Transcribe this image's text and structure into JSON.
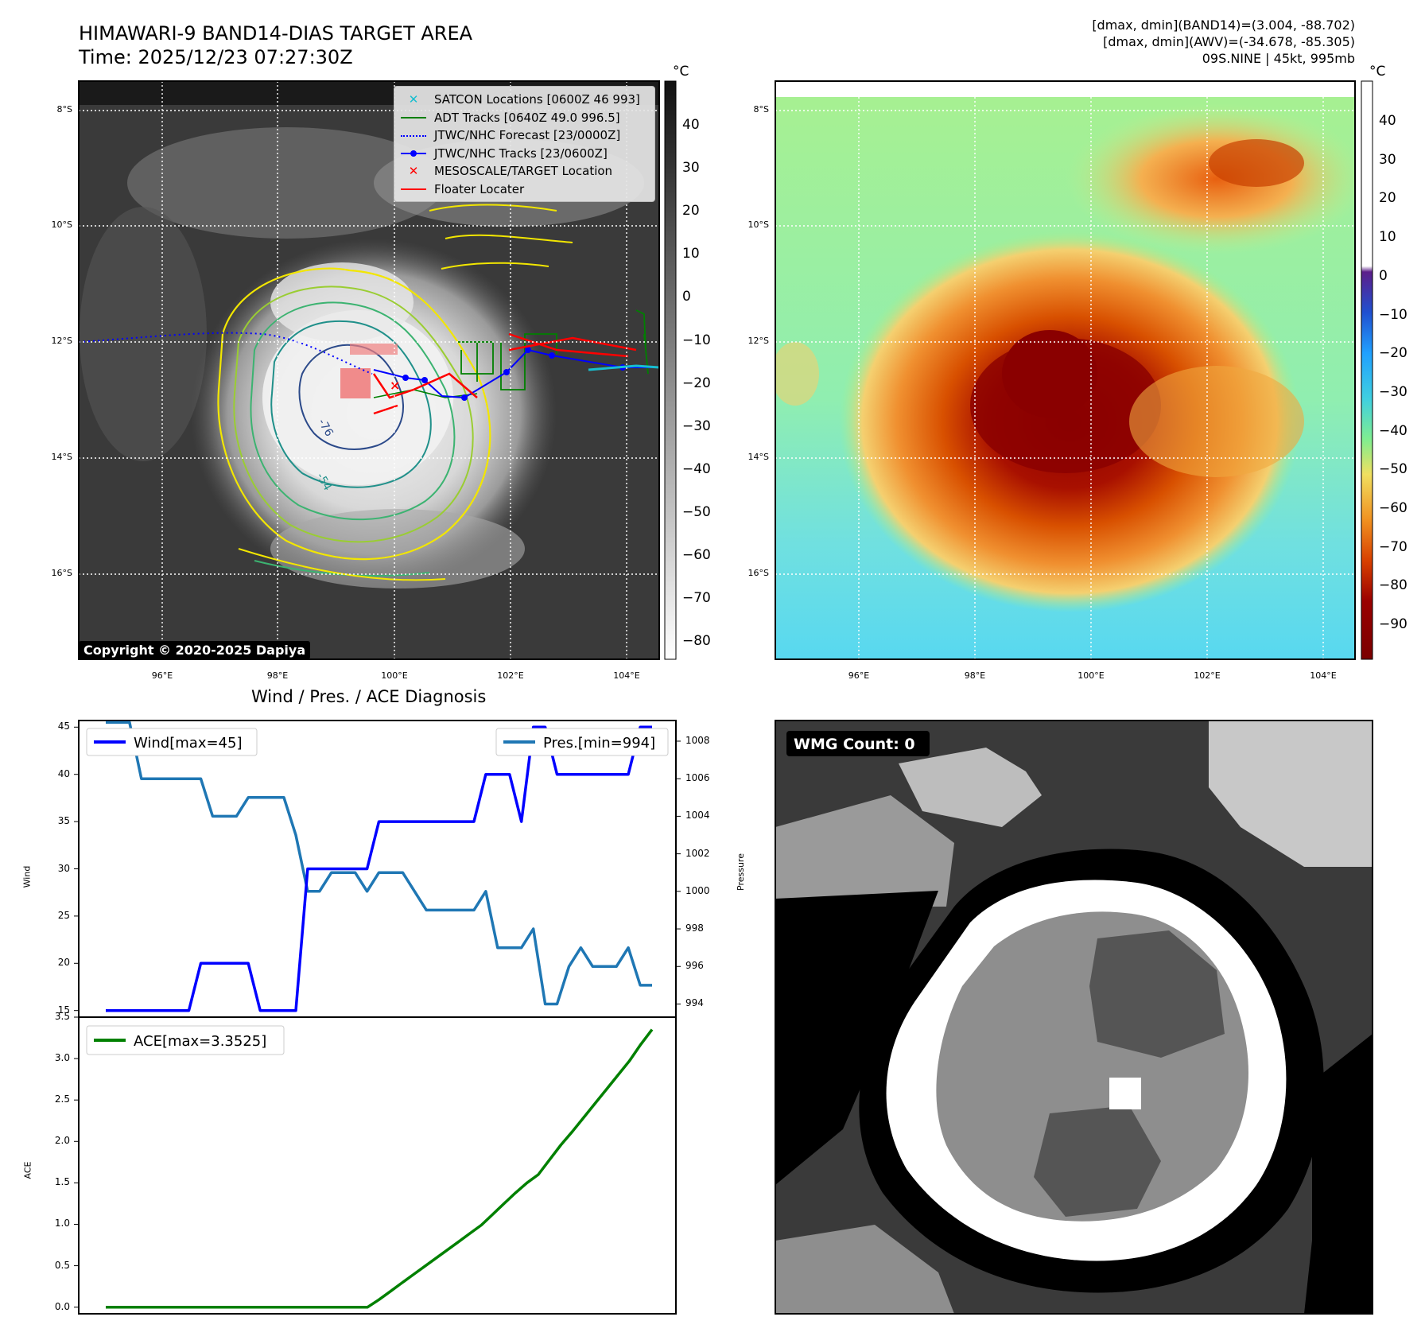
{
  "header": {
    "title_line1": "HIMAWARI-9 BAND14-DIAS TARGET AREA",
    "title_line2": "Time: 2025/12/23 07:27:30Z",
    "right_line1": "[dmax, dmin](BAND14)=(3.004, -88.702)",
    "right_line2": "[dmax, dmin](AWV)=(-34.678, -85.305)",
    "right_line3": "09S.NINE | 45kt, 995mb"
  },
  "map": {
    "lat_labels": [
      "8°S",
      "10°S",
      "12°S",
      "14°S",
      "16°S"
    ],
    "lon_labels": [
      "96°E",
      "98°E",
      "100°E",
      "102°E",
      "104°E"
    ],
    "copyright": "Copyright © 2020-2025 Dapiya",
    "contour_label_a": "-76",
    "contour_label_b": "-54",
    "legend": [
      {
        "label": "SATCON Locations [0600Z 46 993]",
        "color": "#17becf",
        "marker": "x"
      },
      {
        "label": "ADT Tracks [0640Z 49.0 996.5]",
        "color": "#008000",
        "marker": "line"
      },
      {
        "label": "JTWC/NHC Forecast [23/0000Z]",
        "color": "#0000ff",
        "marker": "dot"
      },
      {
        "label": "JTWC/NHC Tracks [23/0600Z]",
        "color": "#0000ff",
        "marker": "line-dot"
      },
      {
        "label": "MESOSCALE/TARGET Location",
        "color": "#ff0000",
        "marker": "x"
      },
      {
        "label": "Floater Locater",
        "color": "#ff0000",
        "marker": "line"
      }
    ]
  },
  "colorbar_gray": {
    "unit": "°C",
    "ticks": [
      "40",
      "30",
      "20",
      "10",
      "0",
      "−10",
      "−20",
      "−30",
      "−40",
      "−50",
      "−60",
      "−70",
      "−80"
    ]
  },
  "colorbar_color": {
    "unit": "°C",
    "ticks": [
      "40",
      "30",
      "20",
      "10",
      "0",
      "−10",
      "−20",
      "−30",
      "−40",
      "−50",
      "−60",
      "−70",
      "−80",
      "−90"
    ]
  },
  "wmg": {
    "label": "WMG Count: 0"
  },
  "chart_data": [
    {
      "type": "line",
      "title": "Wind / Pres. / ACE Diagnosis",
      "ylabel": "Wind",
      "ylabel_right": "Pressure",
      "ylim": [
        14.3,
        45.7
      ],
      "ylim_right": [
        993.3,
        1009.1
      ],
      "y_ticks": [
        15,
        20,
        25,
        30,
        35,
        40,
        45
      ],
      "y_ticks_right": [
        994,
        996,
        998,
        1000,
        1002,
        1004,
        1006,
        1008
      ],
      "series": [
        {
          "name": "Wind[max=45]",
          "color": "#0000ff",
          "values": [
            15,
            15,
            15,
            15,
            15,
            15,
            15,
            15,
            20,
            20,
            20,
            20,
            20,
            15,
            15,
            15,
            15,
            30,
            30,
            30,
            30,
            30,
            30,
            35,
            35,
            35,
            35,
            35,
            35,
            35,
            35,
            35,
            40,
            40,
            40,
            35,
            45,
            45,
            40,
            40,
            40,
            40,
            40,
            40,
            40,
            45,
            45
          ]
        },
        {
          "name": "Pres.[min=994]",
          "color": "#1f77b4",
          "values": [
            1009,
            1009,
            1009,
            1006,
            1006,
            1006,
            1006,
            1006,
            1006,
            1004,
            1004,
            1004,
            1005,
            1005,
            1005,
            1005,
            1003,
            1000,
            1000,
            1001,
            1001,
            1001,
            1000,
            1001,
            1001,
            1001,
            1000,
            999,
            999,
            999,
            999,
            999,
            1000,
            997,
            997,
            997,
            998,
            994,
            994,
            996,
            997,
            996,
            996,
            996,
            997,
            995,
            995
          ]
        }
      ]
    },
    {
      "type": "line",
      "ylabel": "ACE",
      "ylim": [
        -0.08,
        3.5
      ],
      "y_ticks": [
        "0.0",
        "0.5",
        "1.0",
        "1.5",
        "2.0",
        "2.5",
        "3.0",
        "3.5"
      ],
      "series": [
        {
          "name": "ACE[max=3.3525]",
          "color": "#008000",
          "values": [
            0,
            0,
            0,
            0,
            0,
            0,
            0,
            0,
            0,
            0,
            0,
            0,
            0,
            0,
            0,
            0,
            0,
            0,
            0,
            0,
            0,
            0,
            0,
            0,
            0.09,
            0.19,
            0.29,
            0.39,
            0.49,
            0.59,
            0.69,
            0.79,
            0.89,
            0.99,
            1.12,
            1.25,
            1.38,
            1.5,
            1.6,
            1.78,
            1.96,
            2.12,
            2.29,
            2.46,
            2.63,
            2.8,
            2.97,
            3.17,
            3.35
          ]
        }
      ]
    }
  ]
}
